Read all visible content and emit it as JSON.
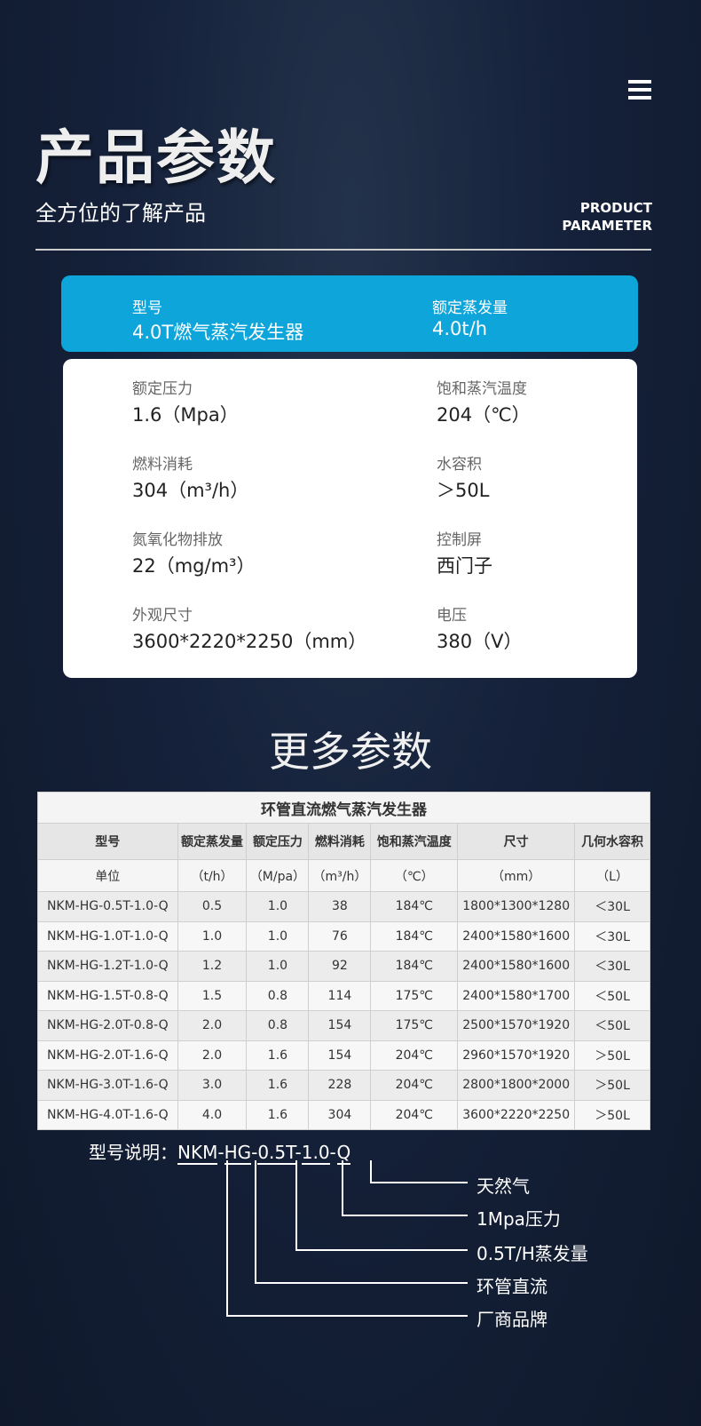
{
  "header": {
    "title": "产品参数",
    "subtitle": "全方位的了解产品",
    "en_line1": "PRODUCT",
    "en_line2": "PARAMETER",
    "menu_icon": "hamburger-icon"
  },
  "highlight": [
    {
      "key": "型号",
      "value": "4.0T燃气蒸汽发生器"
    },
    {
      "key": "额定蒸发量",
      "value": "4.0t/h"
    }
  ],
  "specs": [
    {
      "key": "额定压力",
      "value": "1.6（Mpa）"
    },
    {
      "key": "饱和蒸汽温度",
      "value": "204（℃）"
    },
    {
      "key": "燃料消耗",
      "value": "304（m³/h）"
    },
    {
      "key": "水容积",
      "value": "＞50L"
    },
    {
      "key": "氮氧化物排放",
      "value": "22（mg/m³）"
    },
    {
      "key": "控制屏",
      "value": "西门子"
    },
    {
      "key": "外观尺寸",
      "value": "3600*2220*2250（mm）"
    },
    {
      "key": "电压",
      "value": "380（V）"
    }
  ],
  "more_title": "更多参数",
  "table": {
    "title": "环管直流燃气蒸汽发生器",
    "headers": [
      "型号",
      "额定蒸发量",
      "额定压力",
      "燃料消耗",
      "饱和蒸汽温度",
      "尺寸",
      "几何水容积"
    ],
    "units": [
      "单位",
      "（t/h）",
      "（M/pa）",
      "（m³/h）",
      "（℃）",
      "（mm）",
      "（L）"
    ],
    "rows": [
      [
        "NKM-HG-0.5T-1.0-Q",
        "0.5",
        "1.0",
        "38",
        "184℃",
        "1800*1300*1280",
        "＜30L"
      ],
      [
        "NKM-HG-1.0T-1.0-Q",
        "1.0",
        "1.0",
        "76",
        "184℃",
        "2400*1580*1600",
        "＜30L"
      ],
      [
        "NKM-HG-1.2T-1.0-Q",
        "1.2",
        "1.0",
        "92",
        "184℃",
        "2400*1580*1600",
        "＜30L"
      ],
      [
        "NKM-HG-1.5T-0.8-Q",
        "1.5",
        "0.8",
        "114",
        "175℃",
        "2400*1580*1700",
        "＜50L"
      ],
      [
        "NKM-HG-2.0T-0.8-Q",
        "2.0",
        "0.8",
        "154",
        "175℃",
        "2500*1570*1920",
        "＜50L"
      ],
      [
        "NKM-HG-2.0T-1.6-Q",
        "2.0",
        "1.6",
        "154",
        "204℃",
        "2960*1570*1920",
        "＞50L"
      ],
      [
        "NKM-HG-3.0T-1.6-Q",
        "3.0",
        "1.6",
        "228",
        "204℃",
        "2800*1800*2000",
        "＞50L"
      ],
      [
        "NKM-HG-4.0T-1.6-Q",
        "4.0",
        "1.6",
        "304",
        "204℃",
        "3600*2220*2250",
        "＞50L"
      ]
    ]
  },
  "model_explain": {
    "label": "型号说明：",
    "parts": [
      "NKM",
      "HG",
      "0.5T",
      "1.0",
      "Q"
    ],
    "sep": "-",
    "meanings": [
      "天然气",
      "1Mpa压力",
      "0.5T/H蒸发量",
      "环管直流",
      "厂商品牌"
    ]
  }
}
